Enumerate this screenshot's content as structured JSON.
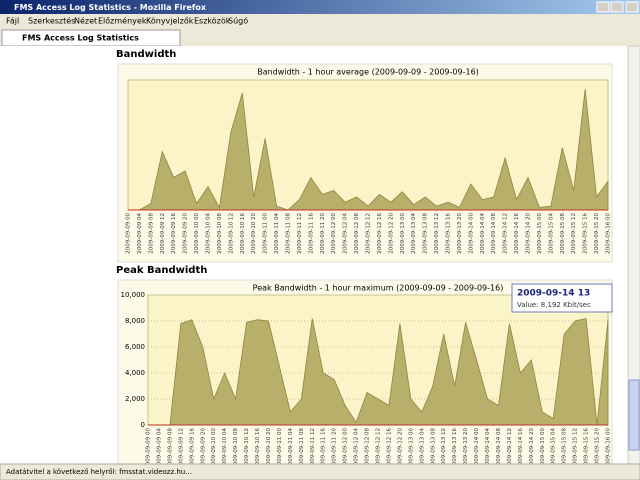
{
  "window": {
    "title": "FMS Access Log Statistics - Mozilla Firefox"
  },
  "menu": [
    "Fájl",
    "Szerkesztés",
    "Nézet",
    "Előzmények",
    "Könyvjelzők",
    "Eszközök",
    "Súgó"
  ],
  "tab": {
    "title": "FMS Access Log Statistics"
  },
  "headings": [
    "Bandwidth",
    "Peak Bandwidth"
  ],
  "tooltip": {
    "title": "2009-09-14 13",
    "text": "Value: 8,192 Kbit/sec"
  },
  "status": "Adatátvitel a következő helyről: fmsstat.videozz.hu...",
  "chart_data": [
    {
      "type": "area",
      "title": "Bandwidth - 1 hour average (2009-09-09 - 2009-09-16)",
      "color": "#b8b06a",
      "categories": [
        "2009-09-09 00",
        "2009-09-09 04",
        "2009-09-09 08",
        "2009-09-09 12",
        "2009-09-09 16",
        "2009-09-09 20",
        "2009-09-10 00",
        "2009-09-10 04",
        "2009-09-10 08",
        "2009-09-10 12",
        "2009-09-10 16",
        "2009-09-10 20",
        "2009-09-11 00",
        "2009-09-11 04",
        "2009-09-11 08",
        "2009-09-11 12",
        "2009-09-11 16",
        "2009-09-11 20",
        "2009-09-12 00",
        "2009-09-12 04",
        "2009-09-12 08",
        "2009-09-12 12",
        "2009-09-12 16",
        "2009-09-12 20",
        "2009-09-13 00",
        "2009-09-13 04",
        "2009-09-13 08",
        "2009-09-13 12",
        "2009-09-13 16",
        "2009-09-13 20",
        "2009-09-14 00",
        "2009-09-14 04",
        "2009-09-14 08",
        "2009-09-14 12",
        "2009-09-14 16",
        "2009-09-14 20",
        "2009-09-15 00",
        "2009-09-15 04",
        "2009-09-15 08",
        "2009-09-15 12",
        "2009-09-15 16",
        "2009-09-15 20",
        "2009-09-16 00"
      ],
      "values": [
        0,
        0,
        5,
        45,
        25,
        30,
        5,
        18,
        2,
        60,
        90,
        10,
        55,
        3,
        0,
        8,
        25,
        12,
        15,
        6,
        10,
        3,
        12,
        6,
        14,
        4,
        10,
        3,
        6,
        2,
        20,
        8,
        10,
        40,
        8,
        25,
        2,
        3,
        48,
        15,
        93,
        10,
        22
      ],
      "ylim": [
        0,
        100
      ]
    },
    {
      "type": "area",
      "title": "Peak Bandwidth - 1 hour maximum (2009-09-09 - 2009-09-16)",
      "color": "#b8b06a",
      "categories": [
        "2009-09-09 00",
        "2009-09-09 04",
        "2009-09-09 08",
        "2009-09-09 12",
        "2009-09-09 16",
        "2009-09-09 20",
        "2009-09-10 00",
        "2009-09-10 04",
        "2009-09-10 08",
        "2009-09-10 12",
        "2009-09-10 16",
        "2009-09-10 20",
        "2009-09-11 00",
        "2009-09-11 04",
        "2009-09-11 08",
        "2009-09-11 12",
        "2009-09-11 16",
        "2009-09-11 20",
        "2009-09-12 00",
        "2009-09-12 04",
        "2009-09-12 08",
        "2009-09-12 12",
        "2009-09-12 16",
        "2009-09-12 20",
        "2009-09-13 00",
        "2009-09-13 04",
        "2009-09-13 08",
        "2009-09-13 12",
        "2009-09-13 16",
        "2009-09-13 20",
        "2009-09-14 00",
        "2009-09-14 04",
        "2009-09-14 08",
        "2009-09-14 12",
        "2009-09-14 16",
        "2009-09-14 20",
        "2009-09-15 00",
        "2009-09-15 04",
        "2009-09-15 08",
        "2009-09-15 12",
        "2009-09-15 16",
        "2009-09-15 20",
        "2009-09-16 00"
      ],
      "values": [
        0,
        0,
        0,
        7800,
        8100,
        6000,
        2000,
        4000,
        2000,
        7900,
        8100,
        8000,
        4500,
        1000,
        2000,
        8200,
        4000,
        3500,
        1500,
        200,
        2500,
        2000,
        1500,
        7800,
        2000,
        1000,
        3000,
        7000,
        3000,
        7900,
        5000,
        2000,
        1500,
        7800,
        4000,
        5000,
        1000,
        500,
        7000,
        8000,
        8192,
        0,
        8100
      ],
      "ylim": [
        0,
        10000
      ],
      "yticks": [
        0,
        {
          "value": 2000,
          "label": "2,000"
        },
        {
          "value": 4000,
          "label": "4,000"
        },
        {
          "value": 6000,
          "label": "6,000"
        },
        {
          "value": 8000,
          "label": "8,000"
        },
        {
          "value": 10000,
          "label": "10,000"
        }
      ],
      "grid": true
    }
  ]
}
